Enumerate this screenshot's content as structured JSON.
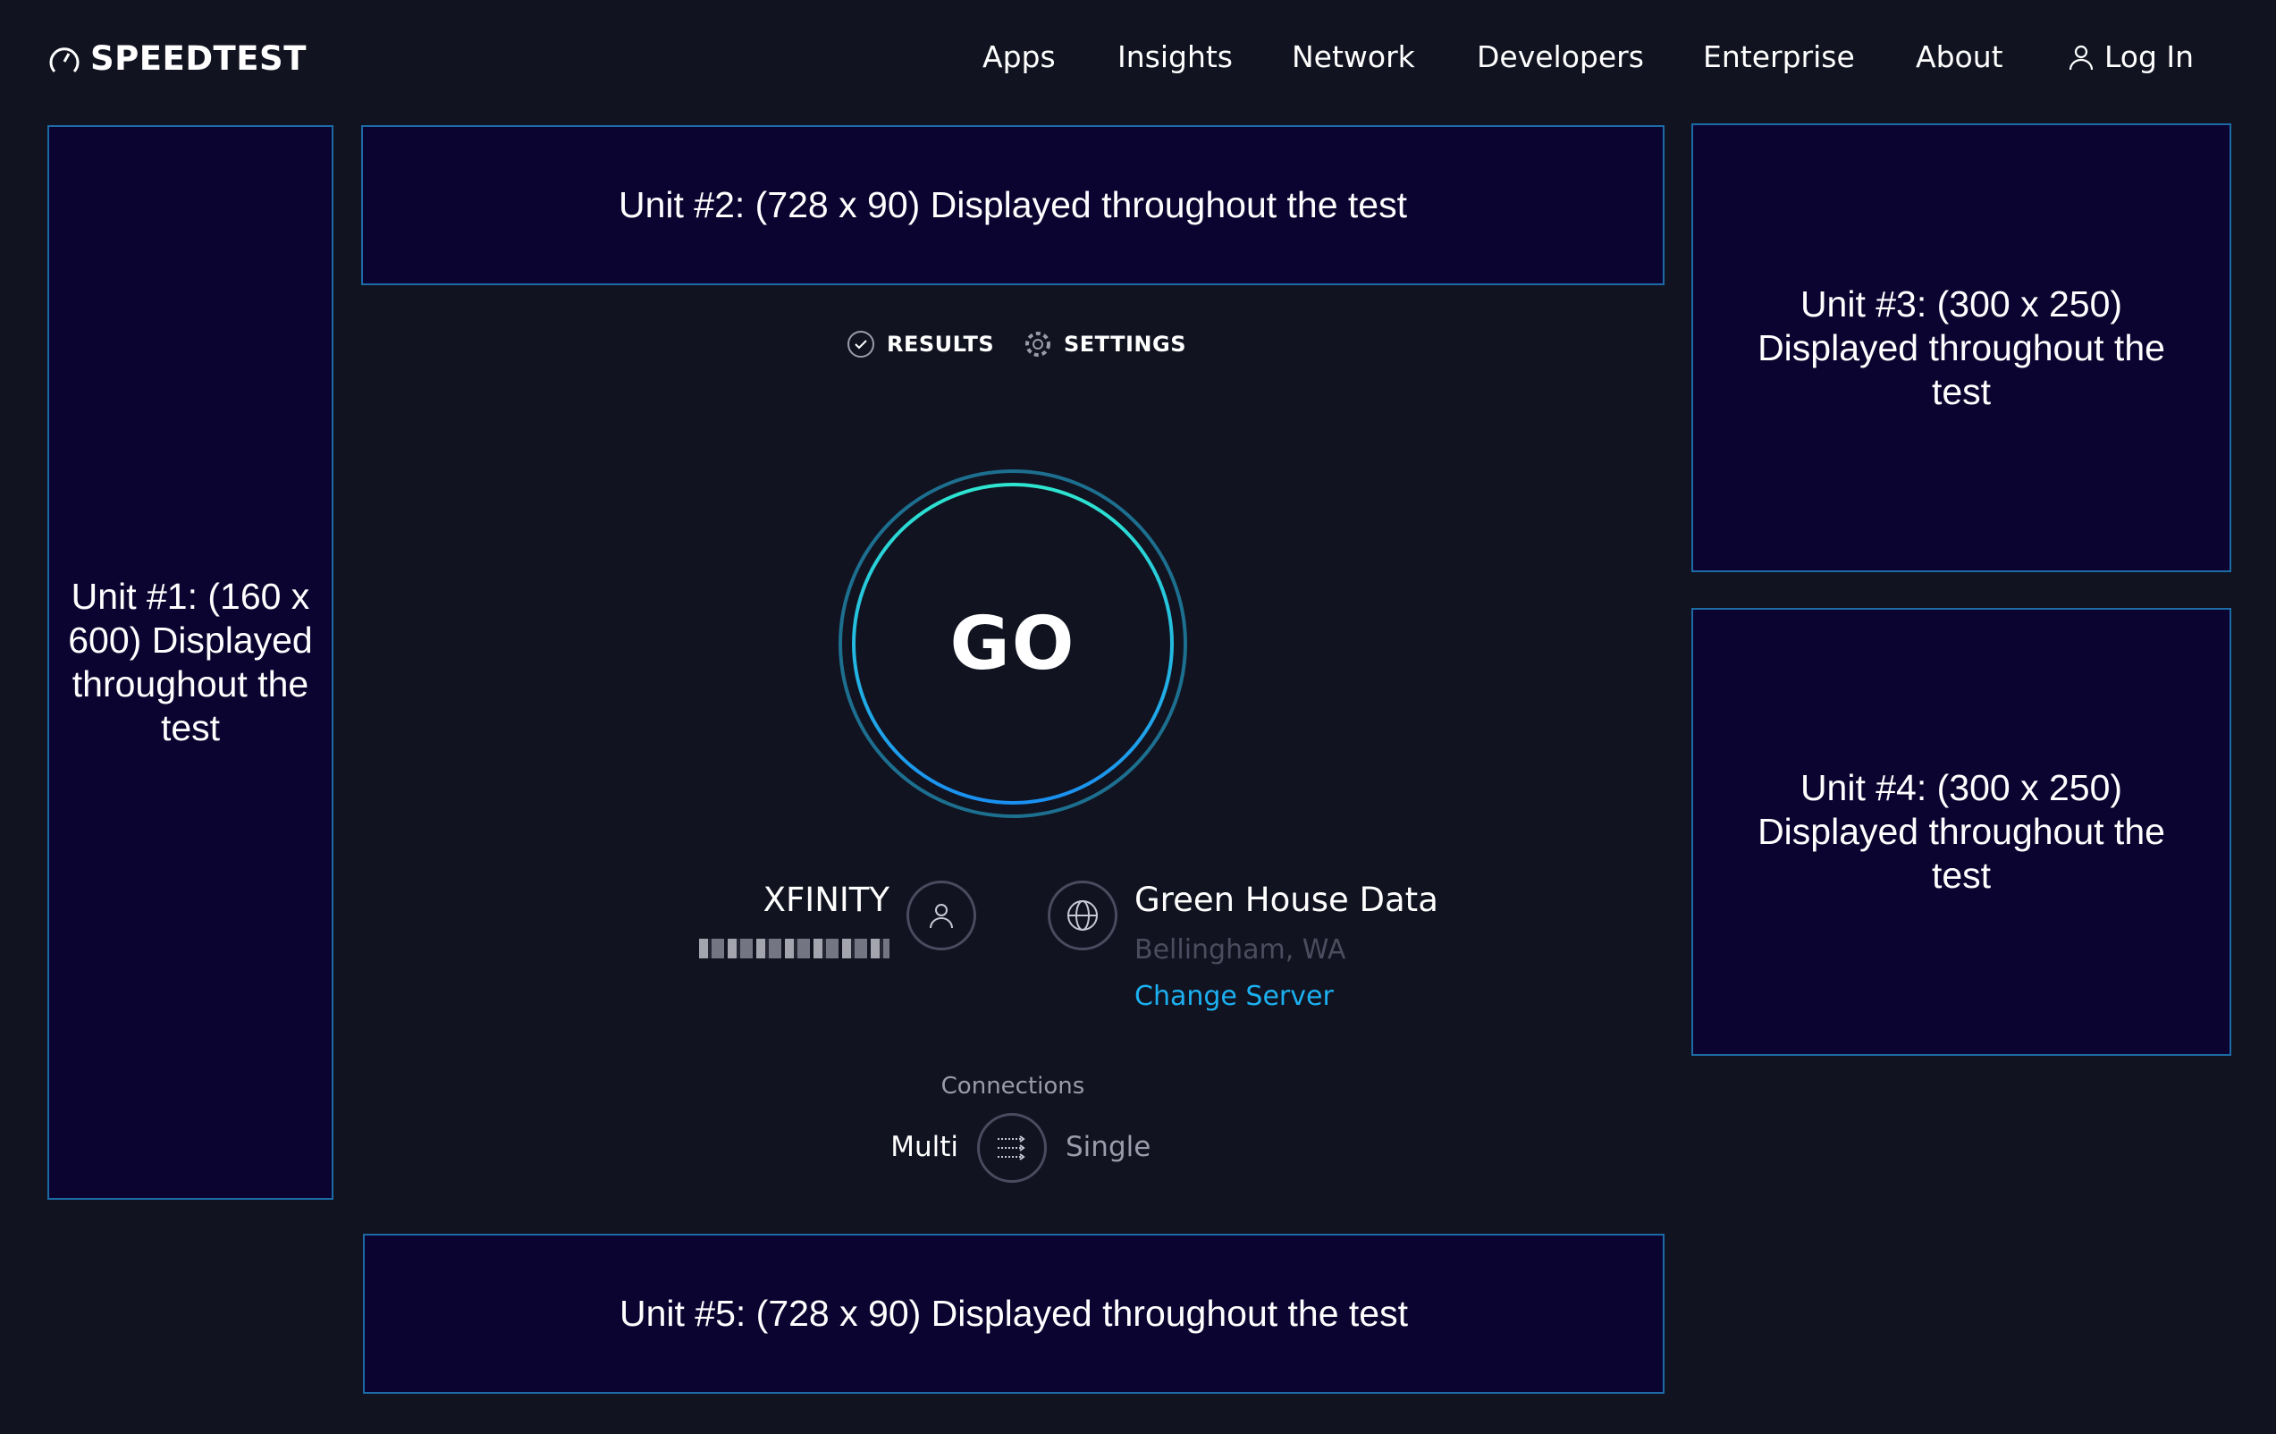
{
  "header": {
    "logo": "SPEEDTEST",
    "nav": [
      "Apps",
      "Insights",
      "Network",
      "Developers",
      "Enterprise",
      "About"
    ],
    "login": "Log In"
  },
  "ads": {
    "unit1": "Unit #1: (160 x 600) Displayed throughout the test",
    "unit2": "Unit #2: (728 x 90) Displayed throughout the test",
    "unit3": "Unit #3: (300 x 250) Displayed throughout the test",
    "unit4": "Unit #4: (300 x 250) Displayed throughout the test",
    "unit5": "Unit #5: (728 x 90) Displayed throughout the test"
  },
  "tabs": {
    "results": "RESULTS",
    "settings": "SETTINGS"
  },
  "go": "GO",
  "isp": {
    "name": "XFINITY"
  },
  "server": {
    "name": "Green House Data",
    "location": "Bellingham, WA",
    "change": "Change Server"
  },
  "connections": {
    "label": "Connections",
    "multi": "Multi",
    "single": "Single"
  },
  "colors": {
    "background": "#111320",
    "ad_fill": "#0b0430",
    "ad_border": "#1c6aa6",
    "link": "#1cb0f0",
    "go_ring_start": "#2ee6d0",
    "go_ring_end": "#1a8ff0"
  }
}
